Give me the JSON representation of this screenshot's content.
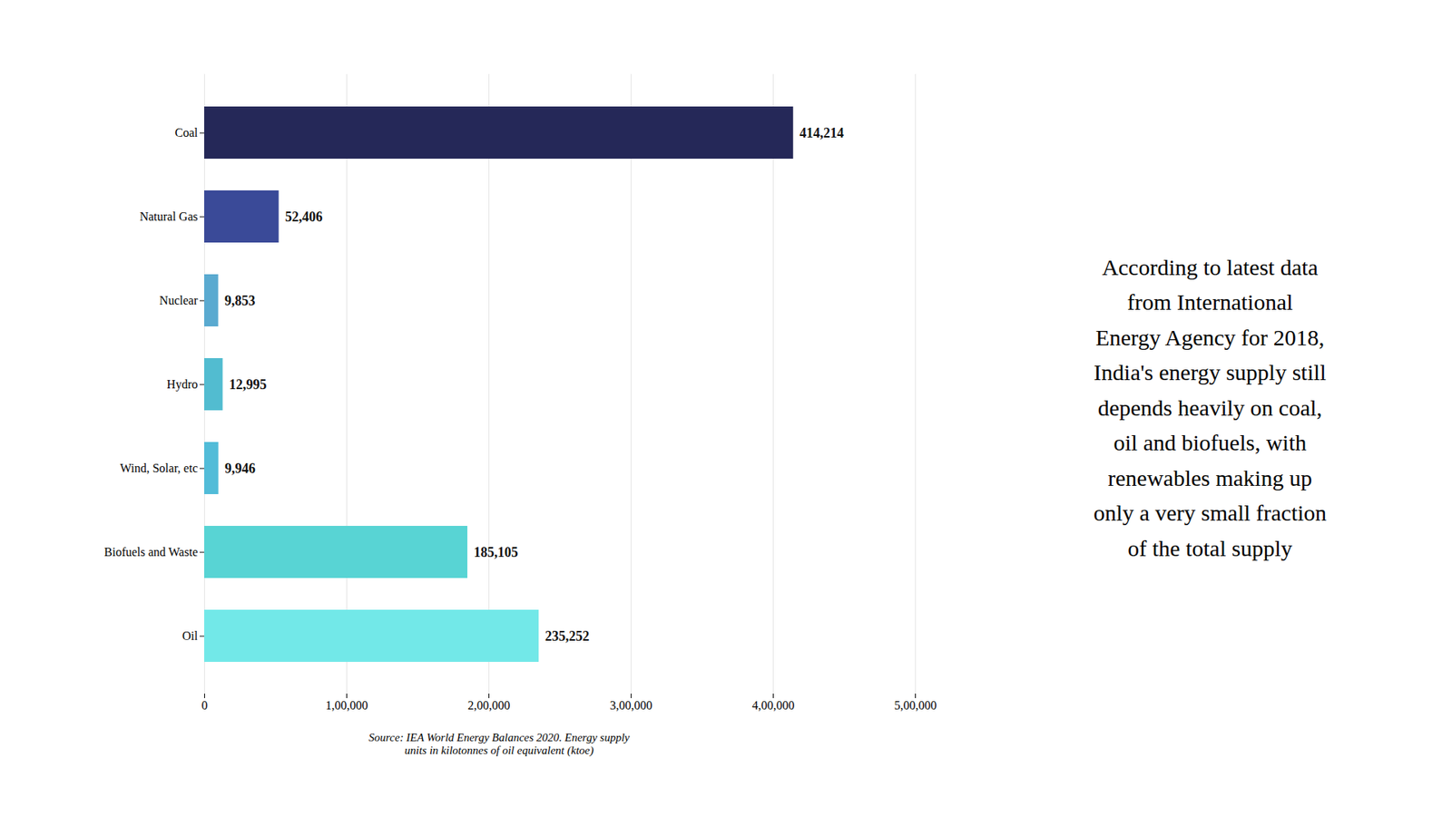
{
  "chart_data": {
    "type": "bar",
    "orientation": "horizontal",
    "categories": [
      "Coal",
      "Natural Gas",
      "Nuclear",
      "Hydro",
      "Wind, Solar, etc",
      "Biofuels and Waste",
      "Oil"
    ],
    "values": [
      414214,
      52406,
      9853,
      12995,
      9946,
      185105,
      235252
    ],
    "value_labels": [
      "414,214",
      "52,406",
      "9,853",
      "12,995",
      "9,946",
      "185,105",
      "235,252"
    ],
    "data_labels": true,
    "colors": [
      "#252858",
      "#3a4a98",
      "#5aaad0",
      "#52bcd0",
      "#52bcd8",
      "#58d4d4",
      "#72e8e8"
    ],
    "xlim": [
      0,
      500000
    ],
    "xticks": [
      0,
      {
        "value": 100000,
        "label": "1,00,000"
      },
      {
        "value": 200000,
        "label": "2,00,000"
      },
      {
        "value": 300000,
        "label": "3,00,000"
      },
      {
        "value": 400000,
        "label": "4,00,000"
      },
      {
        "value": 500000,
        "label": "5,00,000"
      }
    ],
    "grid": true,
    "annotations": [
      "Source: IEA World Energy Balances 2020. Energy supply\nunits in kilotonnes of oil equivalent (ktoe)",
      "According to latest data\nfrom International\nEnergy Agency for 2018,\nIndia's energy supply still\ndepends heavily on coal,\noil and biofuels, with\nrenewables making up\nonly a very small fraction\nof the total supply"
    ]
  }
}
